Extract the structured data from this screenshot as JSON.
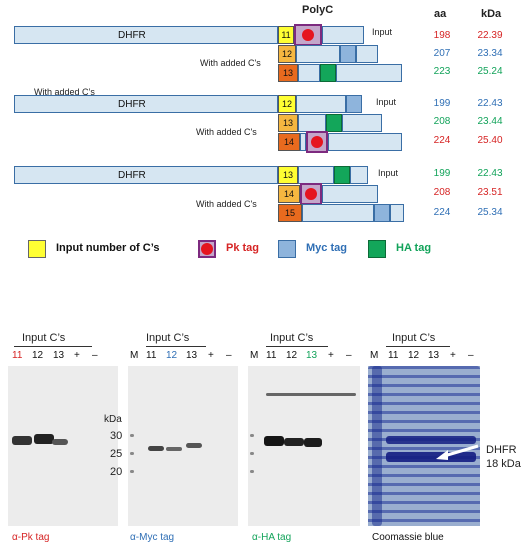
{
  "header": {
    "polyc": "PolyC",
    "aa": "aa",
    "kda": "kDa"
  },
  "diagram": {
    "dhfr_label": "DHFR",
    "input_label": "Input",
    "with_added": "With added C's",
    "with_added_top": "With added C’s",
    "groups": [
      {
        "rows": [
          {
            "num": "11",
            "aa": "198",
            "kda": "22.39"
          },
          {
            "num": "12",
            "aa": "207",
            "kda": "23.34"
          },
          {
            "num": "13",
            "aa": "223",
            "kda": "25.24"
          }
        ]
      },
      {
        "rows": [
          {
            "num": "12",
            "aa": "199",
            "kda": "22.43"
          },
          {
            "num": "13",
            "aa": "208",
            "kda": "23.44"
          },
          {
            "num": "14",
            "aa": "224",
            "kda": "25.40"
          }
        ]
      },
      {
        "rows": [
          {
            "num": "13",
            "aa": "199",
            "kda": "22.43"
          },
          {
            "num": "14",
            "aa": "208",
            "kda": "23.51"
          },
          {
            "num": "15",
            "aa": "224",
            "kda": "25.34"
          }
        ]
      }
    ]
  },
  "legend": {
    "input": "Input number of C’s",
    "pk": "Pk tag",
    "myc": "Myc tag",
    "ha": "HA tag"
  },
  "colors": {
    "pk_red": "#d62424",
    "myc_blue": "#2f6fb5",
    "ha_green": "#12a35a",
    "input_yellow": "#ffff33"
  },
  "blots": {
    "input_cs": "Input C’s",
    "marker": "M",
    "lanes": [
      "11",
      "12",
      "13",
      "+",
      "–"
    ],
    "kda_label": "kDa",
    "ladder": [
      "30",
      "25",
      "20"
    ],
    "captions": {
      "pk": "α-Pk tag",
      "myc": "α-Myc tag",
      "ha": "α-HA tag",
      "coomassie": "Coomassie blue"
    },
    "dhfr_label": "DHFR",
    "dhfr_kda": "18 kDa"
  }
}
